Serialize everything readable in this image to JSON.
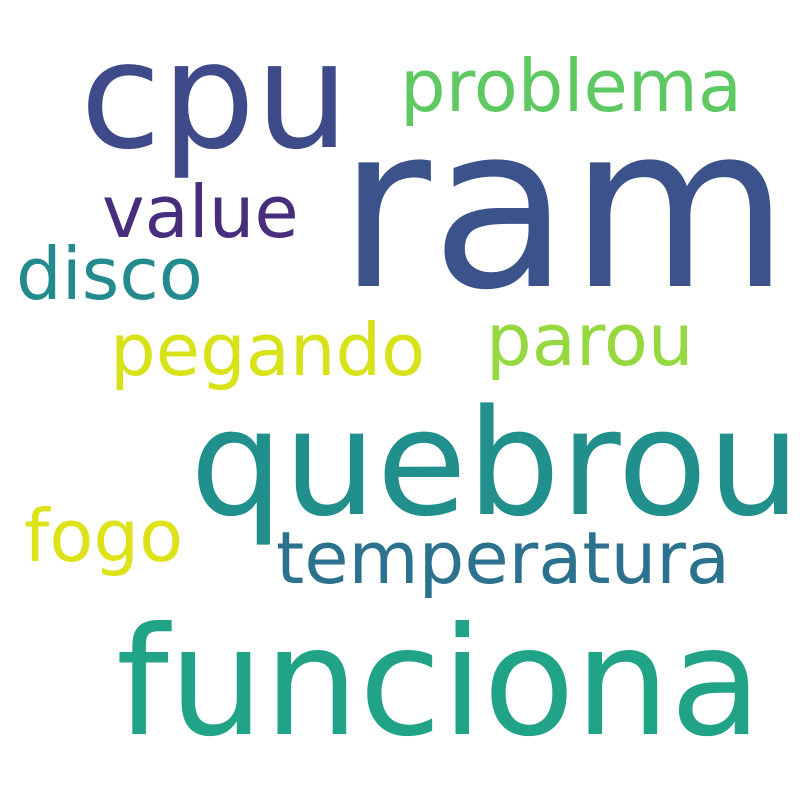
{
  "words": {
    "ram": {
      "text": "ram",
      "color": "#3b528b"
    },
    "quebrou": {
      "text": "quebrou",
      "color": "#21908d"
    },
    "funciona": {
      "text": "funciona",
      "color": "#20a386"
    },
    "cpu": {
      "text": "cpu",
      "color": "#3e4a89"
    },
    "problema": {
      "text": "problema",
      "color": "#5ec962"
    },
    "value": {
      "text": "value",
      "color": "#472d7b"
    },
    "disco": {
      "text": "disco",
      "color": "#238a8d"
    },
    "pegando": {
      "text": "pegando",
      "color": "#d8e219"
    },
    "parou": {
      "text": "parou",
      "color": "#95d840"
    },
    "fogo": {
      "text": "fogo",
      "color": "#dde318"
    },
    "temperatura": {
      "text": "temperatura",
      "color": "#2c728e"
    }
  }
}
